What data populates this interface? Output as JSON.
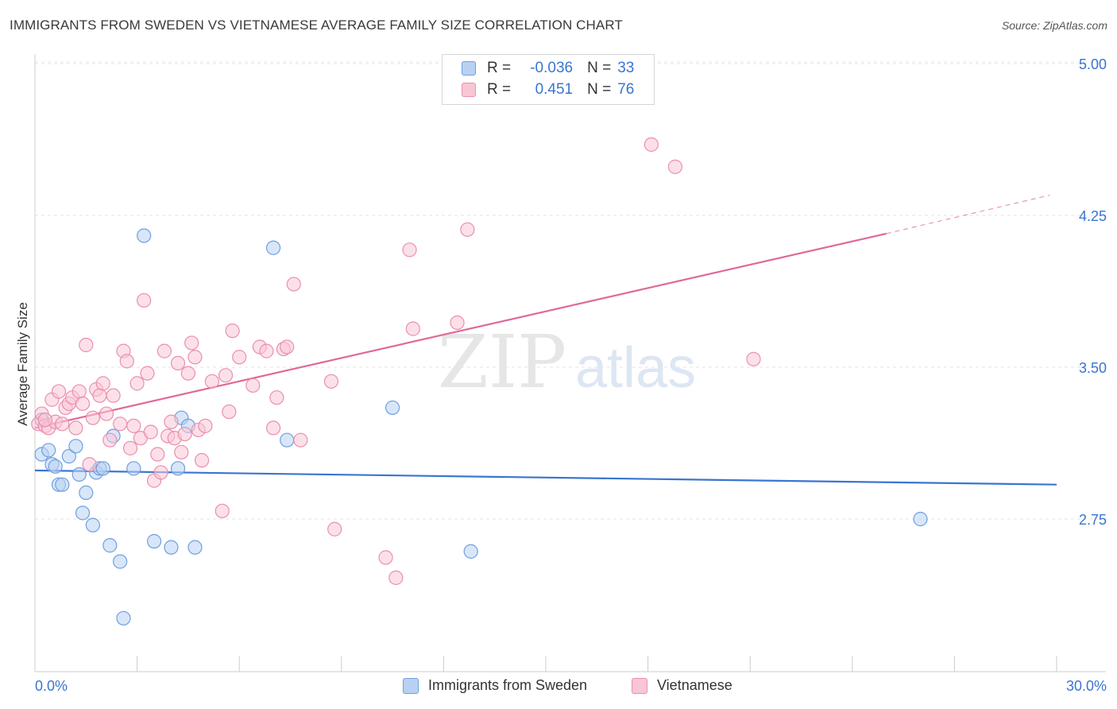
{
  "header": {
    "title": "IMMIGRANTS FROM SWEDEN VS VIETNAMESE AVERAGE FAMILY SIZE CORRELATION CHART",
    "source": "Source: ZipAtlas.com"
  },
  "legend": {
    "rows": [
      {
        "r_label": "R =",
        "r_value": "-0.036",
        "n_label": "N =",
        "n_value": "33",
        "fill": "#b8d1f3",
        "stroke": "#6f9fe0"
      },
      {
        "r_label": "R =",
        "r_value": "0.451",
        "n_label": "N =",
        "n_value": "76",
        "fill": "#f9c6d6",
        "stroke": "#ea8fae"
      }
    ]
  },
  "bottom_legend": {
    "items": [
      {
        "label": "Immigrants from Sweden",
        "fill": "#b8d1f3",
        "stroke": "#6f9fe0"
      },
      {
        "label": "Vietnamese",
        "fill": "#f9c6d6",
        "stroke": "#ea8fae"
      }
    ]
  },
  "chart_data": {
    "type": "scatter",
    "title": "IMMIGRANTS FROM SWEDEN VS VIETNAMESE AVERAGE FAMILY SIZE CORRELATION CHART",
    "xlabel": "",
    "ylabel": "Average Family Size",
    "xlim": [
      0,
      30
    ],
    "ylim": [
      2.2,
      5.1
    ],
    "x_tick_labels": [
      "0.0%",
      "30.0%"
    ],
    "y_ticks": [
      2.75,
      3.5,
      4.25,
      5.0
    ],
    "y_tick_labels": [
      "2.75",
      "3.50",
      "4.25",
      "5.00"
    ],
    "grid": true,
    "legend_position": "top-center",
    "watermark": {
      "part1": "ZIP",
      "part2": "atlas"
    },
    "series": [
      {
        "name": "Immigrants from Sweden",
        "color": "#3a75d0",
        "fill": "#b8d1f3",
        "stroke": "#6f9fe0",
        "trend": {
          "x0": 0,
          "y0": 2.99,
          "x1": 30,
          "y1": 2.92
        },
        "points": [
          {
            "x": 0.2,
            "y": 3.24
          },
          {
            "x": 0.2,
            "y": 3.07
          },
          {
            "x": 0.4,
            "y": 3.09
          },
          {
            "x": 0.5,
            "y": 3.02
          },
          {
            "x": 0.6,
            "y": 3.01
          },
          {
            "x": 0.7,
            "y": 2.92
          },
          {
            "x": 0.8,
            "y": 2.92
          },
          {
            "x": 1.0,
            "y": 3.06
          },
          {
            "x": 1.2,
            "y": 3.11
          },
          {
            "x": 1.3,
            "y": 2.97
          },
          {
            "x": 1.4,
            "y": 2.78
          },
          {
            "x": 1.5,
            "y": 2.88
          },
          {
            "x": 1.7,
            "y": 2.72
          },
          {
            "x": 1.8,
            "y": 2.98
          },
          {
            "x": 1.9,
            "y": 3.0
          },
          {
            "x": 2.0,
            "y": 3.0
          },
          {
            "x": 2.2,
            "y": 2.62
          },
          {
            "x": 2.3,
            "y": 3.16
          },
          {
            "x": 2.5,
            "y": 2.54
          },
          {
            "x": 2.6,
            "y": 2.26
          },
          {
            "x": 2.9,
            "y": 3.0
          },
          {
            "x": 3.2,
            "y": 4.15
          },
          {
            "x": 3.5,
            "y": 2.64
          },
          {
            "x": 4.0,
            "y": 2.61
          },
          {
            "x": 4.2,
            "y": 3.0
          },
          {
            "x": 4.3,
            "y": 3.25
          },
          {
            "x": 4.5,
            "y": 3.21
          },
          {
            "x": 4.7,
            "y": 2.61
          },
          {
            "x": 7.0,
            "y": 4.09
          },
          {
            "x": 7.4,
            "y": 3.14
          },
          {
            "x": 10.5,
            "y": 3.3
          },
          {
            "x": 12.8,
            "y": 2.59
          },
          {
            "x": 26.0,
            "y": 2.75
          }
        ]
      },
      {
        "name": "Vietnamese",
        "color": "#e0689a",
        "fill": "#f9c6d6",
        "stroke": "#ea8fae",
        "trend": {
          "x0": 0,
          "y0": 3.2,
          "x1": 25,
          "y1": 4.16,
          "dash_x1": 29.8,
          "dash_y1": 4.35
        },
        "points": [
          {
            "x": 0.1,
            "y": 3.22
          },
          {
            "x": 0.2,
            "y": 3.27
          },
          {
            "x": 0.3,
            "y": 3.21
          },
          {
            "x": 0.4,
            "y": 3.2
          },
          {
            "x": 0.5,
            "y": 3.34
          },
          {
            "x": 0.6,
            "y": 3.23
          },
          {
            "x": 0.7,
            "y": 3.38
          },
          {
            "x": 0.8,
            "y": 3.22
          },
          {
            "x": 0.9,
            "y": 3.3
          },
          {
            "x": 1.0,
            "y": 3.32
          },
          {
            "x": 1.1,
            "y": 3.35
          },
          {
            "x": 1.2,
            "y": 3.2
          },
          {
            "x": 1.3,
            "y": 3.38
          },
          {
            "x": 1.4,
            "y": 3.32
          },
          {
            "x": 1.5,
            "y": 3.61
          },
          {
            "x": 1.6,
            "y": 3.02
          },
          {
            "x": 1.7,
            "y": 3.25
          },
          {
            "x": 1.8,
            "y": 3.39
          },
          {
            "x": 1.9,
            "y": 3.36
          },
          {
            "x": 2.0,
            "y": 3.42
          },
          {
            "x": 2.1,
            "y": 3.27
          },
          {
            "x": 2.2,
            "y": 3.14
          },
          {
            "x": 2.3,
            "y": 3.36
          },
          {
            "x": 2.5,
            "y": 3.22
          },
          {
            "x": 2.6,
            "y": 3.58
          },
          {
            "x": 2.7,
            "y": 3.53
          },
          {
            "x": 2.8,
            "y": 3.1
          },
          {
            "x": 2.9,
            "y": 3.21
          },
          {
            "x": 3.0,
            "y": 3.42
          },
          {
            "x": 3.1,
            "y": 3.15
          },
          {
            "x": 3.2,
            "y": 3.83
          },
          {
            "x": 3.3,
            "y": 3.47
          },
          {
            "x": 3.4,
            "y": 3.18
          },
          {
            "x": 3.5,
            "y": 2.94
          },
          {
            "x": 3.6,
            "y": 3.07
          },
          {
            "x": 3.7,
            "y": 2.98
          },
          {
            "x": 3.8,
            "y": 3.58
          },
          {
            "x": 3.9,
            "y": 3.16
          },
          {
            "x": 4.0,
            "y": 3.23
          },
          {
            "x": 4.1,
            "y": 3.15
          },
          {
            "x": 4.2,
            "y": 3.52
          },
          {
            "x": 4.3,
            "y": 3.08
          },
          {
            "x": 4.4,
            "y": 3.17
          },
          {
            "x": 4.5,
            "y": 3.47
          },
          {
            "x": 4.6,
            "y": 3.62
          },
          {
            "x": 4.7,
            "y": 3.55
          },
          {
            "x": 4.8,
            "y": 3.19
          },
          {
            "x": 4.9,
            "y": 3.04
          },
          {
            "x": 5.0,
            "y": 3.21
          },
          {
            "x": 5.2,
            "y": 3.43
          },
          {
            "x": 5.5,
            "y": 2.79
          },
          {
            "x": 5.6,
            "y": 3.46
          },
          {
            "x": 5.7,
            "y": 3.28
          },
          {
            "x": 5.8,
            "y": 3.68
          },
          {
            "x": 6.0,
            "y": 3.55
          },
          {
            "x": 6.4,
            "y": 3.41
          },
          {
            "x": 6.6,
            "y": 3.6
          },
          {
            "x": 6.8,
            "y": 3.58
          },
          {
            "x": 7.0,
            "y": 3.2
          },
          {
            "x": 7.1,
            "y": 3.35
          },
          {
            "x": 7.3,
            "y": 3.59
          },
          {
            "x": 7.4,
            "y": 3.6
          },
          {
            "x": 7.6,
            "y": 3.91
          },
          {
            "x": 7.8,
            "y": 3.14
          },
          {
            "x": 8.7,
            "y": 3.43
          },
          {
            "x": 8.8,
            "y": 2.7
          },
          {
            "x": 10.3,
            "y": 2.56
          },
          {
            "x": 10.6,
            "y": 2.46
          },
          {
            "x": 11.0,
            "y": 4.08
          },
          {
            "x": 11.1,
            "y": 3.69
          },
          {
            "x": 12.4,
            "y": 3.72
          },
          {
            "x": 12.7,
            "y": 4.18
          },
          {
            "x": 18.1,
            "y": 4.6
          },
          {
            "x": 18.8,
            "y": 4.49
          },
          {
            "x": 21.1,
            "y": 3.54
          },
          {
            "x": 0.3,
            "y": 3.24
          }
        ]
      }
    ]
  }
}
